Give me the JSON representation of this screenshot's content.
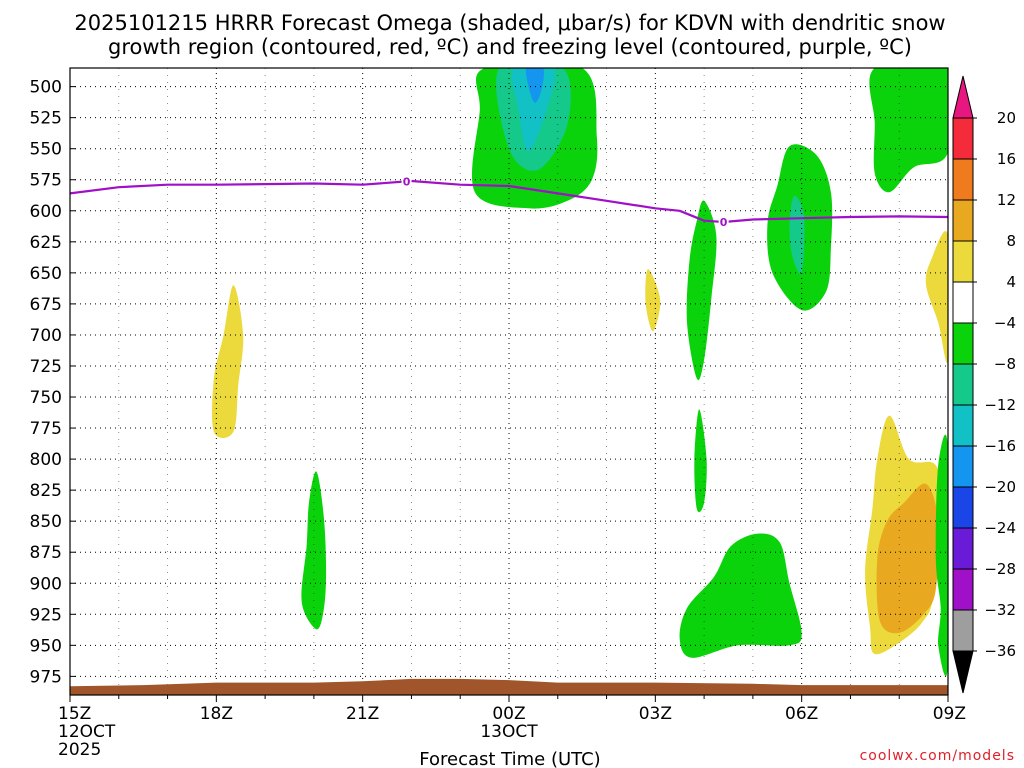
{
  "chart_data": {
    "type": "heatmap",
    "title_line1": "2025101215 HRRR Forecast Omega (shaded, μbar/s) for KDVN with dendritic snow",
    "title_line2": "growth region (contoured, red, ºC) and freezing level (contoured, purple, ºC)",
    "xlabel": "Forecast Time (UTC)",
    "x_ticks": [
      {
        "hour": 0,
        "label": "15Z",
        "sub1": "12OCT",
        "sub2": "2025"
      },
      {
        "hour": 3,
        "label": "18Z",
        "sub1": "",
        "sub2": ""
      },
      {
        "hour": 6,
        "label": "21Z",
        "sub1": "",
        "sub2": ""
      },
      {
        "hour": 9,
        "label": "00Z",
        "sub1": "13OCT",
        "sub2": ""
      },
      {
        "hour": 12,
        "label": "03Z",
        "sub1": "",
        "sub2": ""
      },
      {
        "hour": 15,
        "label": "06Z",
        "sub1": "",
        "sub2": ""
      },
      {
        "hour": 18,
        "label": "09Z",
        "sub1": "",
        "sub2": ""
      }
    ],
    "x_range_hours": [
      0,
      18
    ],
    "y_axis_unit": "hPa",
    "y_ticks": [
      500,
      525,
      550,
      575,
      600,
      625,
      650,
      675,
      700,
      725,
      750,
      775,
      800,
      825,
      850,
      875,
      900,
      925,
      950,
      975
    ],
    "y_range_hpa": [
      485,
      990
    ],
    "colorbar": {
      "labels": [
        "20",
        "16",
        "12",
        "8",
        "4",
        "−4",
        "−8",
        "−12",
        "−16",
        "−20",
        "−24",
        "−28",
        "−32",
        "−36"
      ],
      "bins": [
        {
          "range": [
            16,
            20
          ],
          "color": "#f42b3a"
        },
        {
          "range": [
            12,
            16
          ],
          "color": "#f07a1e"
        },
        {
          "range": [
            8,
            12
          ],
          "color": "#e8a820"
        },
        {
          "range": [
            4,
            8
          ],
          "color": "#ecd93b"
        },
        {
          "range": [
            -4,
            4
          ],
          "color": "#ffffff"
        },
        {
          "range": [
            -8,
            -4
          ],
          "color": "#0bd30b"
        },
        {
          "range": [
            -12,
            -8
          ],
          "color": "#14c98a"
        },
        {
          "range": [
            -16,
            -12
          ],
          "color": "#12c1c5"
        },
        {
          "range": [
            -20,
            -16
          ],
          "color": "#1495f0"
        },
        {
          "range": [
            -24,
            -20
          ],
          "color": "#1a46e8"
        },
        {
          "range": [
            -28,
            -24
          ],
          "color": "#6a1bd8"
        },
        {
          "range": [
            -32,
            -28
          ],
          "color": "#a010c8"
        },
        {
          "range": [
            -36,
            -32
          ],
          "color": "#9e9e9e"
        }
      ],
      "overflow_high_color": "#e8177f",
      "overflow_low_color": "#000000"
    },
    "omega_regions": [
      {
        "name": "green-plume-00z",
        "value_class": -6,
        "color": "#0bd30b",
        "points": [
          [
            8.5,
            485
          ],
          [
            10.5,
            485
          ],
          [
            10.8,
            540
          ],
          [
            10.7,
            575
          ],
          [
            10.2,
            592
          ],
          [
            9.4,
            598
          ],
          [
            8.3,
            585
          ],
          [
            8.4,
            520
          ]
        ]
      },
      {
        "name": "teal-core-00z",
        "value_class": -10,
        "color": "#14c98a",
        "points": [
          [
            8.8,
            485
          ],
          [
            10.1,
            485
          ],
          [
            10.2,
            530
          ],
          [
            9.6,
            567
          ],
          [
            9.0,
            550
          ]
        ]
      },
      {
        "name": "cyan-core-00z",
        "value_class": -14,
        "color": "#12c1c5",
        "points": [
          [
            9.1,
            485
          ],
          [
            9.9,
            485
          ],
          [
            9.8,
            515
          ],
          [
            9.4,
            552
          ],
          [
            9.2,
            520
          ]
        ]
      },
      {
        "name": "blue-core-00z",
        "value_class": -18,
        "color": "#1495f0",
        "points": [
          [
            9.35,
            485
          ],
          [
            9.7,
            485
          ],
          [
            9.65,
            505
          ],
          [
            9.5,
            512
          ]
        ]
      },
      {
        "name": "yellow-blob-02z",
        "value_class": 5,
        "color": "#ecd93b",
        "points": [
          [
            11.85,
            647
          ],
          [
            12.1,
            672
          ],
          [
            11.95,
            697
          ],
          [
            11.8,
            674
          ]
        ]
      },
      {
        "name": "yellow-blob-18z",
        "value_class": 5,
        "color": "#ecd93b",
        "points": [
          [
            3.35,
            660
          ],
          [
            3.55,
            700
          ],
          [
            3.45,
            740
          ],
          [
            3.35,
            778
          ],
          [
            2.95,
            778
          ],
          [
            2.95,
            735
          ],
          [
            3.15,
            700
          ]
        ]
      },
      {
        "name": "green-blob-20z",
        "value_class": -6,
        "color": "#0bd30b",
        "points": [
          [
            5.05,
            810
          ],
          [
            5.2,
            845
          ],
          [
            5.25,
            890
          ],
          [
            5.2,
            922
          ],
          [
            5.05,
            937
          ],
          [
            4.75,
            915
          ],
          [
            4.85,
            870
          ],
          [
            4.9,
            835
          ]
        ]
      },
      {
        "name": "green-column-04z",
        "value_class": -6,
        "color": "#0bd30b",
        "points": [
          [
            13.0,
            592
          ],
          [
            13.25,
            620
          ],
          [
            13.15,
            670
          ],
          [
            13.0,
            720
          ],
          [
            12.85,
            735
          ],
          [
            12.65,
            690
          ],
          [
            12.7,
            640
          ],
          [
            12.85,
            608
          ]
        ]
      },
      {
        "name": "green-sliver-04z",
        "value_class": -6,
        "color": "#0bd30b",
        "points": [
          [
            12.9,
            760
          ],
          [
            13.05,
            800
          ],
          [
            13.0,
            835
          ],
          [
            12.85,
            840
          ],
          [
            12.8,
            800
          ]
        ]
      },
      {
        "name": "green-plume-06z",
        "value_class": -6,
        "color": "#0bd30b",
        "points": [
          [
            14.75,
            548
          ],
          [
            15.3,
            555
          ],
          [
            15.6,
            585
          ],
          [
            15.6,
            630
          ],
          [
            15.5,
            665
          ],
          [
            15.0,
            680
          ],
          [
            14.4,
            650
          ],
          [
            14.3,
            610
          ],
          [
            14.5,
            580
          ]
        ]
      },
      {
        "name": "teal-core-06z",
        "value_class": -10,
        "color": "#14c98a",
        "points": [
          [
            14.85,
            588
          ],
          [
            15.05,
            605
          ],
          [
            15.0,
            650
          ],
          [
            14.8,
            635
          ],
          [
            14.75,
            610
          ]
        ]
      },
      {
        "name": "green-top-right",
        "value_class": -6,
        "color": "#0bd30b",
        "points": [
          [
            16.5,
            485
          ],
          [
            18.0,
            485
          ],
          [
            18.0,
            553
          ],
          [
            17.3,
            565
          ],
          [
            16.8,
            585
          ],
          [
            16.5,
            570
          ],
          [
            16.5,
            530
          ]
        ]
      },
      {
        "name": "yellow-right-edge",
        "value_class": 5,
        "color": "#ecd93b",
        "points": [
          [
            18.0,
            620
          ],
          [
            17.65,
            640
          ],
          [
            17.55,
            660
          ],
          [
            17.8,
            690
          ],
          [
            18.0,
            720
          ]
        ]
      },
      {
        "name": "yellow-blob-07z",
        "value_class": 5,
        "color": "#ecd93b",
        "points": [
          [
            16.8,
            765
          ],
          [
            17.2,
            800
          ],
          [
            17.75,
            805
          ],
          [
            17.9,
            840
          ],
          [
            17.7,
            910
          ],
          [
            17.5,
            930
          ],
          [
            17.1,
            945
          ],
          [
            16.5,
            957
          ],
          [
            16.4,
            935
          ],
          [
            16.3,
            890
          ],
          [
            16.45,
            840
          ],
          [
            16.55,
            800
          ]
        ]
      },
      {
        "name": "orange-core-07z",
        "value_class": 9,
        "color": "#e8a820",
        "points": [
          [
            17.55,
            820
          ],
          [
            17.8,
            850
          ],
          [
            17.75,
            905
          ],
          [
            17.5,
            925
          ],
          [
            17.0,
            940
          ],
          [
            16.6,
            930
          ],
          [
            16.55,
            880
          ],
          [
            16.75,
            850
          ],
          [
            17.1,
            835
          ]
        ]
      },
      {
        "name": "green-blob-05z",
        "value_class": -6,
        "color": "#0bd30b",
        "points": [
          [
            14.1,
            860
          ],
          [
            14.55,
            867
          ],
          [
            14.75,
            900
          ],
          [
            15.0,
            940
          ],
          [
            14.75,
            950
          ],
          [
            13.7,
            950
          ],
          [
            12.75,
            960
          ],
          [
            12.5,
            945
          ],
          [
            12.65,
            920
          ],
          [
            13.2,
            895
          ],
          [
            13.55,
            870
          ]
        ]
      },
      {
        "name": "green-right-edge-low",
        "value_class": -6,
        "color": "#0bd30b",
        "points": [
          [
            18.0,
            792
          ],
          [
            17.8,
            805
          ],
          [
            17.75,
            880
          ],
          [
            17.85,
            920
          ],
          [
            17.8,
            950
          ],
          [
            18.0,
            965
          ]
        ]
      }
    ],
    "freezing_level": {
      "value_label": "0",
      "color": "#a010c8",
      "points": [
        [
          0,
          586
        ],
        [
          1,
          581
        ],
        [
          2,
          579
        ],
        [
          3,
          579
        ],
        [
          4,
          578.5
        ],
        [
          5,
          578
        ],
        [
          6,
          579
        ],
        [
          7,
          576
        ],
        [
          8,
          579
        ],
        [
          9,
          580
        ],
        [
          10,
          586
        ],
        [
          11,
          592
        ],
        [
          12,
          598
        ],
        [
          12.5,
          600
        ],
        [
          13.0,
          608
        ],
        [
          13.4,
          609
        ],
        [
          14.0,
          607
        ],
        [
          15,
          606
        ],
        [
          16,
          605
        ],
        [
          17,
          604.5
        ],
        [
          18,
          605
        ]
      ],
      "labels_at_hours": [
        6.9,
        13.4
      ]
    },
    "terrain": {
      "color": "#a0552a",
      "top_hpa": [
        [
          0,
          983
        ],
        [
          1.5,
          982
        ],
        [
          3,
          980
        ],
        [
          5,
          980
        ],
        [
          6,
          979
        ],
        [
          7,
          977
        ],
        [
          8,
          977
        ],
        [
          9,
          978
        ],
        [
          10,
          980
        ],
        [
          12,
          980
        ],
        [
          14,
          981
        ],
        [
          15,
          982
        ],
        [
          16,
          982
        ],
        [
          18,
          982
        ]
      ],
      "bottom_hpa": 990
    }
  },
  "credit": "coolwx.com/models"
}
